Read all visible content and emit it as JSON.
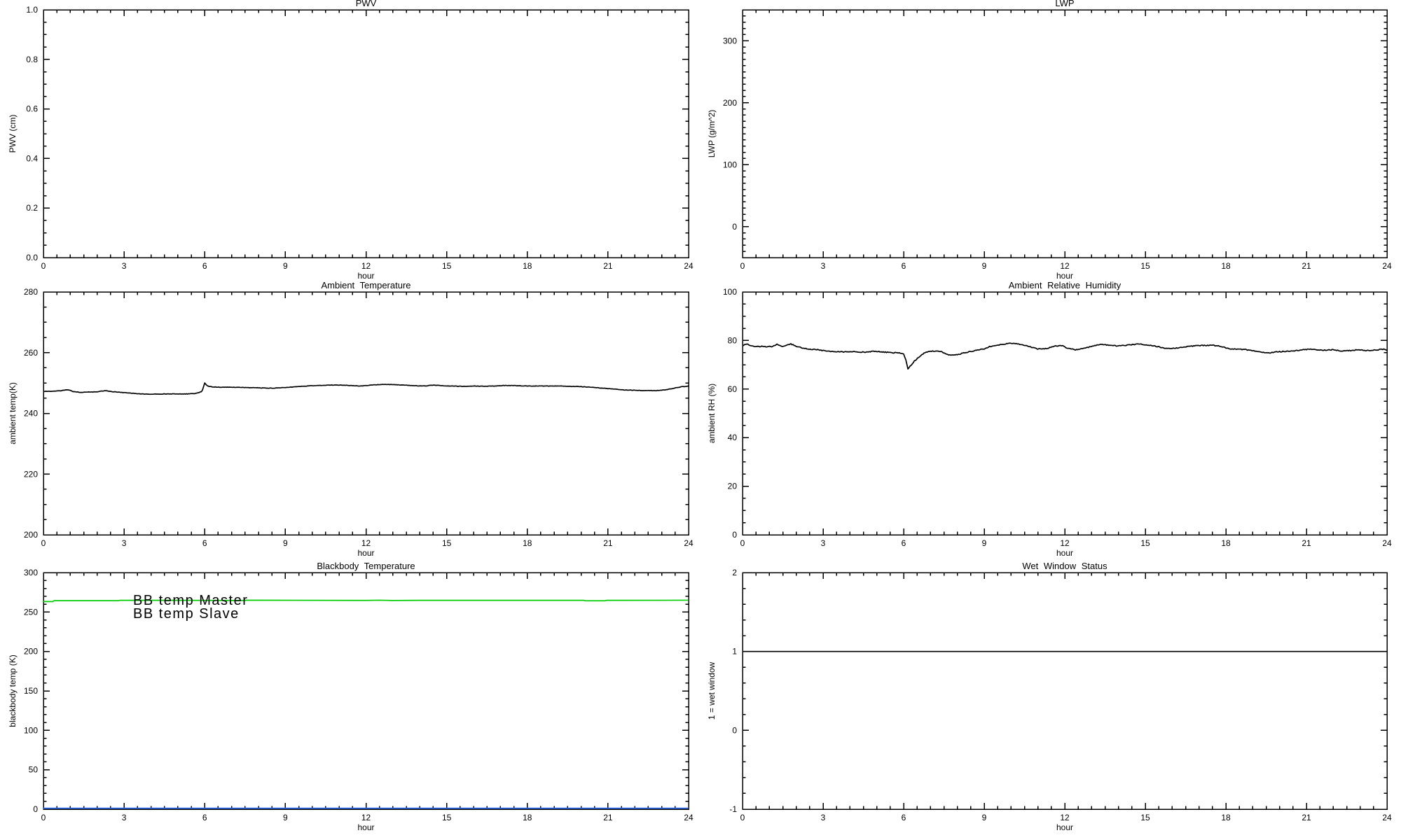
{
  "figure": {
    "background": "#ffffff"
  },
  "colors": {
    "axis": "#000000",
    "black_series": "#000000",
    "bb_master_blue": "#2f6bf2",
    "bb_slave_green": "#00cd00"
  },
  "chart_data": [
    {
      "id": "pwv",
      "type": "line",
      "title": "PWV",
      "xlabel": "hour",
      "ylabel": "PWV (cm)",
      "xlim": [
        0,
        24
      ],
      "ylim": [
        0.0,
        1.0
      ],
      "xticks": [
        0,
        3,
        6,
        9,
        12,
        15,
        18,
        21,
        24
      ],
      "xtick_labels": [
        "0",
        "3",
        "6",
        "9",
        "12",
        "15",
        "18",
        "21",
        "24"
      ],
      "yticks": [
        0.0,
        0.2,
        0.4,
        0.6,
        0.8,
        1.0
      ],
      "ytick_labels": [
        "0.0",
        "0.2",
        "0.4",
        "0.6",
        "0.8",
        "1.0"
      ],
      "x_minor_step": 0.5,
      "y_minor_step": 0.05,
      "grid": false,
      "series": []
    },
    {
      "id": "lwp",
      "type": "line",
      "title": "LWP",
      "xlabel": "hour",
      "ylabel": "LWP (g/m^2)",
      "xlim": [
        0,
        24
      ],
      "ylim": [
        -50,
        350
      ],
      "xticks": [
        0,
        3,
        6,
        9,
        12,
        15,
        18,
        21,
        24
      ],
      "xtick_labels": [
        "0",
        "3",
        "6",
        "9",
        "12",
        "15",
        "18",
        "21",
        "24"
      ],
      "yticks": [
        0,
        100,
        200,
        300
      ],
      "ytick_labels": [
        "0",
        "100",
        "200",
        "300"
      ],
      "x_minor_step": 0.5,
      "y_minor_step": 10,
      "grid": false,
      "series": []
    },
    {
      "id": "ambient-temperature",
      "type": "line",
      "title": "Ambient Temperature",
      "xlabel": "hour",
      "ylabel": "ambient temp(K)",
      "xlim": [
        0,
        24
      ],
      "ylim": [
        200,
        280
      ],
      "xticks": [
        0,
        3,
        6,
        9,
        12,
        15,
        18,
        21,
        24
      ],
      "xtick_labels": [
        "0",
        "3",
        "6",
        "9",
        "12",
        "15",
        "18",
        "21",
        "24"
      ],
      "yticks": [
        200,
        220,
        240,
        260,
        280
      ],
      "ytick_labels": [
        "200",
        "220",
        "240",
        "260",
        "280"
      ],
      "x_minor_step": 0.5,
      "y_minor_step": 5,
      "grid": false,
      "series": [
        {
          "name": "ambient temperature",
          "color": "#000000",
          "noise": 0.07,
          "points": [
            [
              0,
              247.2
            ],
            [
              0.3,
              247.3
            ],
            [
              0.6,
              247.4
            ],
            [
              0.9,
              247.8
            ],
            [
              1.1,
              247.2
            ],
            [
              1.4,
              246.9
            ],
            [
              1.7,
              247.0
            ],
            [
              2.0,
              247.1
            ],
            [
              2.3,
              247.5
            ],
            [
              2.6,
              247.1
            ],
            [
              2.9,
              246.9
            ],
            [
              3.2,
              246.7
            ],
            [
              3.6,
              246.4
            ],
            [
              4.0,
              246.3
            ],
            [
              4.5,
              246.4
            ],
            [
              5.0,
              246.4
            ],
            [
              5.4,
              246.4
            ],
            [
              5.7,
              246.6
            ],
            [
              5.9,
              247.2
            ],
            [
              6.0,
              250.0
            ],
            [
              6.1,
              249.0
            ],
            [
              6.3,
              248.7
            ],
            [
              6.6,
              248.6
            ],
            [
              7.0,
              248.6
            ],
            [
              7.5,
              248.5
            ],
            [
              8.0,
              248.4
            ],
            [
              8.5,
              248.3
            ],
            [
              9.0,
              248.5
            ],
            [
              9.4,
              248.8
            ],
            [
              9.8,
              249.0
            ],
            [
              10.2,
              249.2
            ],
            [
              10.6,
              249.3
            ],
            [
              11.0,
              249.3
            ],
            [
              11.4,
              249.2
            ],
            [
              11.8,
              249.0
            ],
            [
              12.2,
              249.3
            ],
            [
              12.6,
              249.5
            ],
            [
              13.0,
              249.5
            ],
            [
              13.4,
              249.3
            ],
            [
              13.8,
              249.1
            ],
            [
              14.2,
              249.0
            ],
            [
              14.5,
              249.3
            ],
            [
              14.8,
              249.1
            ],
            [
              15.2,
              249.0
            ],
            [
              15.6,
              248.9
            ],
            [
              16.0,
              249.0
            ],
            [
              16.4,
              248.9
            ],
            [
              16.8,
              249.0
            ],
            [
              17.2,
              249.2
            ],
            [
              17.6,
              249.1
            ],
            [
              18.0,
              249.0
            ],
            [
              18.4,
              249.0
            ],
            [
              18.8,
              249.0
            ],
            [
              19.2,
              249.0
            ],
            [
              19.6,
              248.9
            ],
            [
              20.0,
              248.8
            ],
            [
              20.4,
              248.6
            ],
            [
              20.8,
              248.3
            ],
            [
              21.2,
              248.0
            ],
            [
              21.6,
              247.7
            ],
            [
              22.0,
              247.6
            ],
            [
              22.4,
              247.5
            ],
            [
              22.8,
              247.5
            ],
            [
              23.1,
              247.7
            ],
            [
              23.4,
              248.2
            ],
            [
              23.7,
              248.7
            ],
            [
              24,
              249.0
            ]
          ]
        }
      ]
    },
    {
      "id": "ambient-relative-humidity",
      "type": "line",
      "title": "Ambient Relative Humidity",
      "xlabel": "hour",
      "ylabel": "ambient RH (%)",
      "xlim": [
        0,
        24
      ],
      "ylim": [
        0,
        100
      ],
      "xticks": [
        0,
        3,
        6,
        9,
        12,
        15,
        18,
        21,
        24
      ],
      "xtick_labels": [
        "0",
        "3",
        "6",
        "9",
        "12",
        "15",
        "18",
        "21",
        "24"
      ],
      "yticks": [
        0,
        20,
        40,
        60,
        80,
        100
      ],
      "ytick_labels": [
        "0",
        "20",
        "40",
        "60",
        "80",
        "100"
      ],
      "x_minor_step": 0.5,
      "y_minor_step": 5,
      "grid": false,
      "series": [
        {
          "name": "ambient relative humidity",
          "color": "#000000",
          "noise": 0.18,
          "points": [
            [
              0,
              77.8
            ],
            [
              0.15,
              78.6
            ],
            [
              0.3,
              78.0
            ],
            [
              0.5,
              77.4
            ],
            [
              0.7,
              77.6
            ],
            [
              0.9,
              77.4
            ],
            [
              1.1,
              77.5
            ],
            [
              1.3,
              78.5
            ],
            [
              1.5,
              77.4
            ],
            [
              1.8,
              78.6
            ],
            [
              2.0,
              77.6
            ],
            [
              2.2,
              77.0
            ],
            [
              2.5,
              76.4
            ],
            [
              2.8,
              76.2
            ],
            [
              3.1,
              75.7
            ],
            [
              3.4,
              75.4
            ],
            [
              3.7,
              75.3
            ],
            [
              4.0,
              75.4
            ],
            [
              4.3,
              75.3
            ],
            [
              4.6,
              75.2
            ],
            [
              4.9,
              75.6
            ],
            [
              5.2,
              75.3
            ],
            [
              5.5,
              75.0
            ],
            [
              5.8,
              74.9
            ],
            [
              6.0,
              74.4
            ],
            [
              6.1,
              71.5
            ],
            [
              6.15,
              68.2
            ],
            [
              6.25,
              69.5
            ],
            [
              6.4,
              71.5
            ],
            [
              6.6,
              73.5
            ],
            [
              6.8,
              75.0
            ],
            [
              7.0,
              75.6
            ],
            [
              7.2,
              75.6
            ],
            [
              7.4,
              75.4
            ],
            [
              7.6,
              74.3
            ],
            [
              7.8,
              73.9
            ],
            [
              8.0,
              74.1
            ],
            [
              8.2,
              74.8
            ],
            [
              8.5,
              75.5
            ],
            [
              8.8,
              76.2
            ],
            [
              9.0,
              76.5
            ],
            [
              9.2,
              77.5
            ],
            [
              9.5,
              78.1
            ],
            [
              9.8,
              78.6
            ],
            [
              10.1,
              78.9
            ],
            [
              10.4,
              78.4
            ],
            [
              10.7,
              77.4
            ],
            [
              11.0,
              76.5
            ],
            [
              11.3,
              76.6
            ],
            [
              11.6,
              77.7
            ],
            [
              11.9,
              77.9
            ],
            [
              12.1,
              76.8
            ],
            [
              12.4,
              76.1
            ],
            [
              12.7,
              76.7
            ],
            [
              13.0,
              77.6
            ],
            [
              13.3,
              78.4
            ],
            [
              13.6,
              78.1
            ],
            [
              13.9,
              77.8
            ],
            [
              14.2,
              77.9
            ],
            [
              14.5,
              78.3
            ],
            [
              14.8,
              78.5
            ],
            [
              15.1,
              78.1
            ],
            [
              15.4,
              77.6
            ],
            [
              15.7,
              76.9
            ],
            [
              16.0,
              76.7
            ],
            [
              16.3,
              77.0
            ],
            [
              16.6,
              77.5
            ],
            [
              16.9,
              77.9
            ],
            [
              17.2,
              78.0
            ],
            [
              17.5,
              78.0
            ],
            [
              17.8,
              77.6
            ],
            [
              18.1,
              76.6
            ],
            [
              18.4,
              76.4
            ],
            [
              18.7,
              76.3
            ],
            [
              19.0,
              75.8
            ],
            [
              19.3,
              75.2
            ],
            [
              19.6,
              74.9
            ],
            [
              19.9,
              75.3
            ],
            [
              20.2,
              75.5
            ],
            [
              20.5,
              75.7
            ],
            [
              20.8,
              76.1
            ],
            [
              21.1,
              76.4
            ],
            [
              21.4,
              76.1
            ],
            [
              21.7,
              76.0
            ],
            [
              22.0,
              76.2
            ],
            [
              22.3,
              75.7
            ],
            [
              22.6,
              75.8
            ],
            [
              22.9,
              76.2
            ],
            [
              23.2,
              75.9
            ],
            [
              23.5,
              76.0
            ],
            [
              23.8,
              76.3
            ],
            [
              23.9,
              76.6
            ],
            [
              24,
              75.8
            ]
          ]
        }
      ]
    },
    {
      "id": "blackbody-temperature",
      "type": "line",
      "title": "Blackbody Temperature",
      "xlabel": "hour",
      "ylabel": "blackbody temp (K)",
      "xlim": [
        0,
        24
      ],
      "ylim": [
        0,
        300
      ],
      "xticks": [
        0,
        3,
        6,
        9,
        12,
        15,
        18,
        21,
        24
      ],
      "xtick_labels": [
        "0",
        "3",
        "6",
        "9",
        "12",
        "15",
        "18",
        "21",
        "24"
      ],
      "yticks": [
        0,
        50,
        100,
        150,
        200,
        250,
        300
      ],
      "ytick_labels": [
        "0",
        "50",
        "100",
        "150",
        "200",
        "250",
        "300"
      ],
      "x_minor_step": 0.5,
      "y_minor_step": 10,
      "grid": false,
      "legend": {
        "position": "inside-top-left",
        "items": [
          {
            "label": "BB temp Master",
            "color": "#2f6bf2"
          },
          {
            "label": "BB temp Slave",
            "color": "#00cd00"
          }
        ]
      },
      "series": [
        {
          "name": "BB temp Master",
          "color": "#2f6bf2",
          "noise": 0,
          "points": [
            [
              0,
              1.2
            ],
            [
              24,
              1.2
            ]
          ]
        },
        {
          "name": "BB temp Slave",
          "color": "#00cd00",
          "noise": 0,
          "points": [
            [
              0,
              263.3
            ],
            [
              0.35,
              263.3
            ],
            [
              0.4,
              264.4
            ],
            [
              2.8,
              264.4
            ],
            [
              2.85,
              264.9
            ],
            [
              5.0,
              264.8
            ],
            [
              7.5,
              264.6
            ],
            [
              7.55,
              265.0
            ],
            [
              9.3,
              264.9
            ],
            [
              12.0,
              264.7
            ],
            [
              12.5,
              265.0
            ],
            [
              13.0,
              264.6
            ],
            [
              14.0,
              264.8
            ],
            [
              16.0,
              264.8
            ],
            [
              18.0,
              264.8
            ],
            [
              20.1,
              264.8
            ],
            [
              20.15,
              264.3
            ],
            [
              20.9,
              264.3
            ],
            [
              20.95,
              264.8
            ],
            [
              23.0,
              264.9
            ],
            [
              24,
              265.0
            ]
          ]
        }
      ]
    },
    {
      "id": "wet-window-status",
      "type": "line",
      "title": "Wet Window Status",
      "xlabel": "hour",
      "ylabel": "1 = wet window",
      "xlim": [
        0,
        24
      ],
      "ylim": [
        -1,
        2
      ],
      "xticks": [
        0,
        3,
        6,
        9,
        12,
        15,
        18,
        21,
        24
      ],
      "xtick_labels": [
        "0",
        "3",
        "6",
        "9",
        "12",
        "15",
        "18",
        "21",
        "24"
      ],
      "yticks": [
        -1,
        0,
        1,
        2
      ],
      "ytick_labels": [
        "-1",
        "0",
        "1",
        "2"
      ],
      "x_minor_step": 0.5,
      "y_minor_step": 0.2,
      "grid": false,
      "series": [
        {
          "name": "wet window status",
          "color": "#000000",
          "noise": 0,
          "points": [
            [
              0,
              1
            ],
            [
              24,
              1
            ]
          ]
        }
      ]
    }
  ]
}
